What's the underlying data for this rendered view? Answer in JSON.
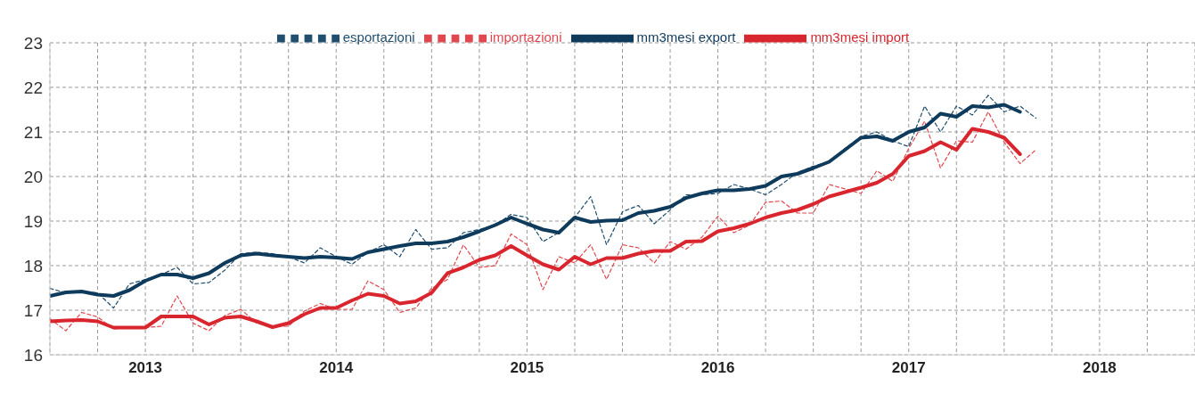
{
  "chart_data": {
    "type": "line",
    "legend": "top",
    "grid": true,
    "ylim": [
      16,
      23
    ],
    "yticks": [
      16,
      17,
      18,
      19,
      20,
      21,
      22,
      23
    ],
    "xlim": [
      "2013-01",
      "2019-01"
    ],
    "xticks": [
      {
        "value": "2013-01",
        "label": null
      },
      {
        "value": "2013-04",
        "label": null
      },
      {
        "value": "2013-07",
        "label": "2013"
      },
      {
        "value": "2013-10",
        "label": null
      },
      {
        "value": "2014-01",
        "label": null
      },
      {
        "value": "2014-04",
        "label": null
      },
      {
        "value": "2014-07",
        "label": "2014"
      },
      {
        "value": "2014-10",
        "label": null
      },
      {
        "value": "2015-01",
        "label": null
      },
      {
        "value": "2015-04",
        "label": null
      },
      {
        "value": "2015-07",
        "label": "2015"
      },
      {
        "value": "2015-10",
        "label": null
      },
      {
        "value": "2016-01",
        "label": null
      },
      {
        "value": "2016-04",
        "label": null
      },
      {
        "value": "2016-07",
        "label": "2016"
      },
      {
        "value": "2016-10",
        "label": null
      },
      {
        "value": "2017-01",
        "label": null
      },
      {
        "value": "2017-04",
        "label": null
      },
      {
        "value": "2017-07",
        "label": "2017"
      },
      {
        "value": "2017-10",
        "label": null
      },
      {
        "value": "2018-01",
        "label": null
      },
      {
        "value": "2018-04",
        "label": null
      },
      {
        "value": "2018-07",
        "label": "2018"
      },
      {
        "value": "2018-10",
        "label": null
      },
      {
        "value": "2019-01",
        "label": null
      }
    ],
    "x": [
      "2013-01",
      "2013-02",
      "2013-03",
      "2013-04",
      "2013-05",
      "2013-06",
      "2013-07",
      "2013-08",
      "2013-09",
      "2013-10",
      "2013-11",
      "2013-12",
      "2014-01",
      "2014-02",
      "2014-03",
      "2014-04",
      "2014-05",
      "2014-06",
      "2014-07",
      "2014-08",
      "2014-09",
      "2014-10",
      "2014-11",
      "2014-12",
      "2015-01",
      "2015-02",
      "2015-03",
      "2015-04",
      "2015-05",
      "2015-06",
      "2015-07",
      "2015-08",
      "2015-09",
      "2015-10",
      "2015-11",
      "2015-12",
      "2016-01",
      "2016-02",
      "2016-03",
      "2016-04",
      "2016-05",
      "2016-06",
      "2016-07",
      "2016-08",
      "2016-09",
      "2016-10",
      "2016-11",
      "2016-12",
      "2017-01",
      "2017-02",
      "2017-03",
      "2017-04",
      "2017-05",
      "2017-06",
      "2017-07",
      "2017-08",
      "2017-09",
      "2017-10",
      "2017-11",
      "2017-12",
      "2018-01",
      "2018-02",
      "2018-03"
    ],
    "series": [
      {
        "name": "esportazioni",
        "color": "#1f4e6e",
        "line_style": "dashed",
        "values": [
          17.49,
          17.39,
          17.42,
          17.39,
          17.05,
          17.59,
          17.69,
          17.8,
          17.96,
          17.59,
          17.62,
          17.9,
          18.27,
          18.3,
          18.27,
          18.2,
          18.06,
          18.4,
          18.2,
          18.03,
          18.3,
          18.47,
          18.2,
          18.81,
          18.37,
          18.4,
          18.74,
          18.81,
          18.91,
          19.15,
          19.08,
          18.54,
          18.74,
          19.08,
          19.55,
          18.47,
          19.21,
          19.35,
          18.94,
          19.25,
          19.59,
          19.59,
          19.62,
          19.82,
          19.72,
          19.59,
          19.82,
          20.09,
          20.23,
          20.33,
          20.63,
          20.9,
          21.0,
          20.8,
          20.67,
          21.58,
          21.0,
          21.58,
          21.38,
          21.82,
          21.45,
          21.58,
          21.31
        ]
      },
      {
        "name": "importazioni",
        "color": "#e0474f",
        "line_style": "dashed",
        "values": [
          16.81,
          16.54,
          16.95,
          16.85,
          16.58,
          16.61,
          16.61,
          16.64,
          17.32,
          16.71,
          16.54,
          16.88,
          17.02,
          16.71,
          16.64,
          16.64,
          16.98,
          17.15,
          17.02,
          17.02,
          17.66,
          17.46,
          16.95,
          17.05,
          17.49,
          17.69,
          18.47,
          17.96,
          18.0,
          18.71,
          18.47,
          17.46,
          18.2,
          18.06,
          18.47,
          17.69,
          18.47,
          18.4,
          18.06,
          18.54,
          18.37,
          18.64,
          19.11,
          18.74,
          18.91,
          19.42,
          19.45,
          19.18,
          19.18,
          19.82,
          19.72,
          19.62,
          20.13,
          19.89,
          20.63,
          21.24,
          20.19,
          20.8,
          20.77,
          21.45,
          20.77,
          20.29,
          20.6
        ]
      },
      {
        "name": "mm3mesi export",
        "color": "#0e3a5c",
        "line_style": "solid",
        "values": [
          17.32,
          17.4,
          17.42,
          17.35,
          17.32,
          17.45,
          17.66,
          17.8,
          17.8,
          17.72,
          17.83,
          18.06,
          18.23,
          18.27,
          18.23,
          18.2,
          18.17,
          18.2,
          18.18,
          18.15,
          18.3,
          18.37,
          18.44,
          18.5,
          18.5,
          18.54,
          18.64,
          18.77,
          18.91,
          19.08,
          18.94,
          18.81,
          18.74,
          19.08,
          18.98,
          19.01,
          19.02,
          19.18,
          19.23,
          19.32,
          19.52,
          19.62,
          19.69,
          19.69,
          19.72,
          19.79,
          20.0,
          20.06,
          20.19,
          20.33,
          20.6,
          20.87,
          20.9,
          20.8,
          21.0,
          21.1,
          21.41,
          21.34,
          21.58,
          21.55,
          21.61,
          21.45,
          null
        ]
      },
      {
        "name": "mm3mesi import",
        "color": "#d9262e",
        "line_style": "solid",
        "values": [
          16.75,
          16.77,
          16.78,
          16.75,
          16.61,
          16.61,
          16.61,
          16.86,
          16.86,
          16.86,
          16.68,
          16.83,
          16.86,
          16.75,
          16.62,
          16.71,
          16.91,
          17.05,
          17.05,
          17.22,
          17.37,
          17.32,
          17.15,
          17.2,
          17.39,
          17.83,
          17.96,
          18.13,
          18.23,
          18.44,
          18.23,
          18.03,
          17.91,
          18.2,
          18.03,
          18.17,
          18.17,
          18.27,
          18.33,
          18.33,
          18.54,
          18.55,
          18.77,
          18.84,
          18.94,
          19.08,
          19.18,
          19.25,
          19.38,
          19.55,
          19.65,
          19.75,
          19.86,
          20.06,
          20.46,
          20.57,
          20.77,
          20.6,
          21.07,
          21.0,
          20.87,
          20.5,
          null
        ]
      }
    ]
  }
}
